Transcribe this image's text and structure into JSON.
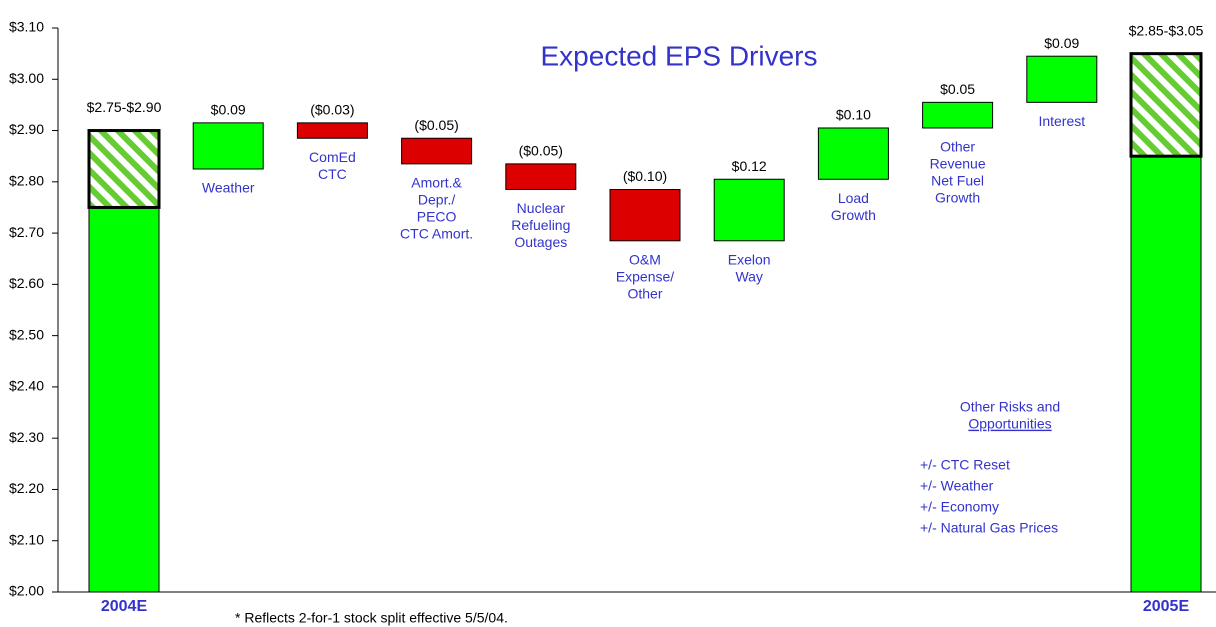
{
  "chart_data": {
    "type": "waterfall",
    "title": "Expected EPS Drivers",
    "ylim": [
      2.0,
      3.1
    ],
    "yticks": [
      {
        "value": 2.0,
        "label": "$2.00"
      },
      {
        "value": 2.1,
        "label": "$2.10"
      },
      {
        "value": 2.2,
        "label": "$2.20"
      },
      {
        "value": 2.3,
        "label": "$2.30"
      },
      {
        "value": 2.4,
        "label": "$2.40"
      },
      {
        "value": 2.5,
        "label": "$2.50"
      },
      {
        "value": 2.6,
        "label": "$2.60"
      },
      {
        "value": 2.7,
        "label": "$2.70"
      },
      {
        "value": 2.8,
        "label": "$2.80"
      },
      {
        "value": 2.9,
        "label": "$2.90"
      },
      {
        "value": 3.0,
        "label": "$3.00"
      },
      {
        "value": 3.1,
        "label": "$3.10"
      }
    ],
    "totals": [
      {
        "category": "2004E",
        "low": 2.75,
        "high": 2.9,
        "label": "$2.75-$2.90"
      },
      {
        "category": "2005E",
        "low": 2.85,
        "high": 3.05,
        "label": "$2.85-$3.05"
      }
    ],
    "categories": [
      [
        "Weather"
      ],
      [
        "ComEd",
        "CTC"
      ],
      [
        "Amort.&",
        "Depr./",
        "PECO",
        "CTC Amort."
      ],
      [
        "Nuclear",
        "Refueling",
        "Outages"
      ],
      [
        "O&M",
        "Expense/",
        "Other"
      ],
      [
        "Exelon",
        "Way"
      ],
      [
        "Load",
        "Growth"
      ],
      [
        "Other",
        "Revenue",
        "Net Fuel",
        "Growth"
      ],
      [
        "Interest"
      ]
    ],
    "values": [
      0.09,
      -0.03,
      -0.05,
      -0.05,
      -0.1,
      0.12,
      0.1,
      0.05,
      0.09
    ],
    "value_labels": [
      "$0.09",
      "($0.03)",
      "($0.05)",
      "($0.05)",
      "($0.10)",
      "$0.12",
      "$0.10",
      "$0.05",
      "$0.09"
    ],
    "colors": {
      "increase": "#00ff00",
      "decrease": "#dd0000",
      "total": "#00ff00"
    },
    "risk_heading": [
      "Other Risks and",
      "Opportunities"
    ],
    "risk_items": [
      "+/- CTC Reset",
      "+/- Weather",
      "+/- Economy",
      "+/- Natural Gas Prices"
    ],
    "footnote": "* Reflects 2-for-1 stock split effective 5/5/04."
  }
}
